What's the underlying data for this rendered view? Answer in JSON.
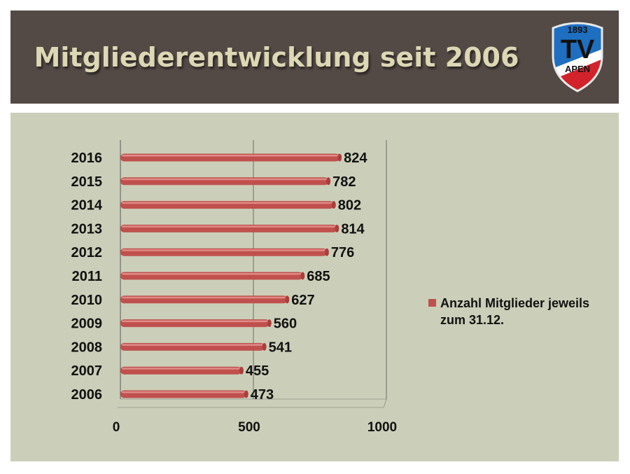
{
  "slide": {
    "title": "Mitgliederentwicklung seit 2006",
    "logo": {
      "top_text": "1893",
      "main_text": "TV",
      "bottom_text": "APEN",
      "colors": [
        "#1f6fc1",
        "#ffffff",
        "#d2232a"
      ]
    }
  },
  "chart_data": {
    "type": "bar",
    "orientation": "horizontal",
    "categories": [
      "2006",
      "2007",
      "2008",
      "2009",
      "2010",
      "2011",
      "2012",
      "2013",
      "2014",
      "2015",
      "2016"
    ],
    "series": [
      {
        "name": "Anzahl Mitglieder jeweils zum 31.12.",
        "values": [
          473,
          455,
          541,
          560,
          627,
          685,
          776,
          814,
          802,
          782,
          824
        ],
        "color": "#c0504d"
      }
    ],
    "xlim": [
      0,
      1000
    ],
    "xticks": [
      "0",
      "500",
      "1000"
    ],
    "grid": "vertical-major",
    "legend_position": "right",
    "style": "3d-cylinder"
  }
}
